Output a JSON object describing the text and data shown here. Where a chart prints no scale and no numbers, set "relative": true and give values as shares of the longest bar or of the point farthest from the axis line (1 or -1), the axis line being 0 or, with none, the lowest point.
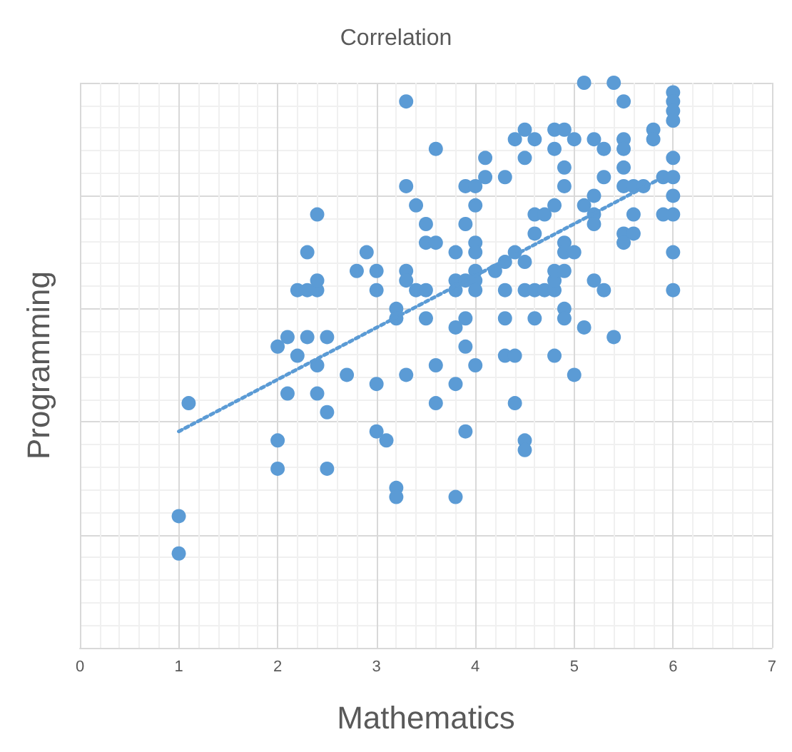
{
  "chart_data": {
    "type": "scatter",
    "title": "Correlation",
    "xlabel": "Mathematics",
    "ylabel": "Programming",
    "relative": true,
    "xlim": [
      0,
      7
    ],
    "xticks": [
      0,
      1,
      2,
      3,
      4,
      5,
      6,
      7
    ],
    "grid": true,
    "tick_labels": "x",
    "marker": "circle",
    "series": [
      {
        "color": "#5b9bd5",
        "x": [
          1,
          1,
          1.1,
          2,
          2,
          2,
          2.1,
          2.1,
          2.2,
          2.2,
          2.3,
          2.4,
          2.4,
          2.3,
          2.4,
          2.3,
          2.5,
          2.4,
          2.4,
          2.5,
          2.5,
          2.7,
          2.8,
          2.9,
          3,
          3,
          3,
          3,
          3.1,
          3.2,
          3.2,
          3.2,
          3.2,
          3.3,
          3.3,
          3.3,
          3.3,
          3.3,
          3.4,
          3.4,
          3.5,
          3.5,
          3.5,
          3.6,
          3.6,
          3.5,
          3.6,
          3.6,
          3.8,
          3.8,
          3.8,
          3.9,
          3.8,
          3.9,
          3.9,
          3.8,
          3.9,
          3.8,
          3.9,
          4,
          4,
          3.9,
          4,
          4,
          4,
          4,
          4,
          4,
          4.1,
          4.1,
          4.2,
          4.3,
          4.3,
          4.3,
          4.3,
          4.3,
          4.4,
          4.4,
          4.4,
          4.4,
          4.5,
          4.6,
          4.5,
          4.5,
          4.5,
          4.6,
          4.5,
          4.5,
          4.6,
          4.7,
          4.6,
          4.6,
          4.7,
          4.8,
          4.8,
          4.8,
          4.9,
          4.8,
          4.8,
          4.8,
          4.9,
          5,
          4.9,
          4.9,
          4.9,
          4.9,
          5,
          4.9,
          4.9,
          4.8,
          5,
          5.1,
          5.1,
          5.1,
          5.2,
          5.2,
          5.2,
          5.2,
          5.3,
          5.3,
          5.2,
          5.3,
          5.4,
          5.4,
          5.5,
          5.5,
          5.5,
          5.5,
          5.5,
          5.6,
          5.7,
          5.6,
          5.5,
          5.6,
          5.5,
          5.8,
          5.8,
          5.9,
          5.9,
          6,
          6,
          6,
          6,
          6,
          6,
          6,
          6,
          6,
          6
        ],
        "values": [
          0.167,
          0.233,
          0.433,
          0.533,
          0.367,
          0.317,
          0.55,
          0.45,
          0.517,
          0.633,
          0.633,
          0.633,
          0.65,
          0.7,
          0.767,
          0.55,
          0.55,
          0.5,
          0.45,
          0.417,
          0.317,
          0.483,
          0.667,
          0.7,
          0.667,
          0.633,
          0.467,
          0.383,
          0.367,
          0.6,
          0.583,
          0.283,
          0.267,
          0.967,
          0.817,
          0.667,
          0.65,
          0.483,
          0.783,
          0.633,
          0.633,
          0.75,
          0.717,
          0.717,
          0.883,
          0.583,
          0.5,
          0.433,
          0.7,
          0.65,
          0.633,
          0.65,
          0.567,
          0.583,
          0.533,
          0.467,
          0.383,
          0.267,
          0.817,
          0.817,
          0.783,
          0.75,
          0.717,
          0.7,
          0.667,
          0.65,
          0.633,
          0.5,
          0.867,
          0.833,
          0.667,
          0.833,
          0.683,
          0.633,
          0.583,
          0.517,
          0.517,
          0.7,
          0.433,
          0.9,
          0.917,
          0.9,
          0.867,
          0.683,
          0.633,
          0.633,
          0.367,
          0.35,
          0.767,
          0.767,
          0.733,
          0.583,
          0.633,
          0.633,
          0.65,
          0.667,
          0.667,
          0.783,
          0.883,
          0.917,
          0.917,
          0.9,
          0.85,
          0.817,
          0.717,
          0.7,
          0.7,
          0.6,
          0.583,
          0.517,
          0.483,
          0.567,
          1,
          0.783,
          0.8,
          0.767,
          0.75,
          0.9,
          0.883,
          0.833,
          0.65,
          0.633,
          0.55,
          1,
          0.967,
          0.9,
          0.883,
          0.85,
          0.817,
          0.817,
          0.817,
          0.767,
          0.733,
          0.733,
          0.717,
          0.917,
          0.9,
          0.833,
          0.767,
          0.983,
          0.967,
          0.95,
          0.933,
          0.867,
          0.833,
          0.8,
          0.767,
          0.7,
          0.633
        ]
      },
      {
        "type": "line",
        "color": "#5b9bd5",
        "line_style": "dotted",
        "marker": "none",
        "x": [
          1,
          5.9
        ],
        "values": [
          0.383,
          0.833
        ]
      }
    ]
  }
}
